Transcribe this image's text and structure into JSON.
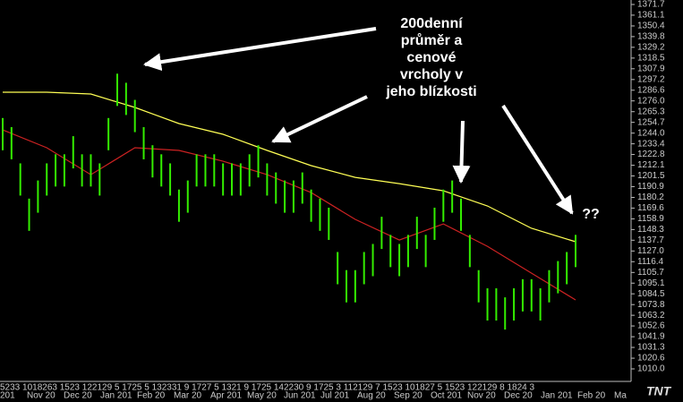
{
  "chart_data": {
    "type": "ohlc",
    "annotation_lines": [
      "200denní",
      "průměr a",
      "cenové",
      "vrcholy v",
      "jeho blízkosti"
    ],
    "annotation_question": "??",
    "logo": "TNT",
    "x_day_labels": "5233 1018263 1523 122129 5 1725 5 132331 9 1727 5 1321 9 1725 142230 9 1725 3 112129 7 1523 101827 5 1523 122129 8 1824 3",
    "x_month_labels": [
      "201",
      "Nov 20",
      "Dec 20",
      "Jan 201",
      "Feb 20",
      "Mar 20",
      "Apr 201",
      "May 20",
      "Jun 201",
      "Jul 201",
      "Aug 20",
      "Sep 20",
      "Oct 201",
      "Nov 20",
      "Dec 20",
      "Jan 201",
      "Feb 20",
      "Ma"
    ],
    "ylim": [
      1010.0,
      1371.7
    ],
    "yticks": [
      1371.7,
      1361.1,
      1350.4,
      1339.8,
      1329.2,
      1318.5,
      1307.9,
      1297.2,
      1286.6,
      {
        "value": 1276.0,
        "label": "1276.0"
      },
      1265.3,
      1254.7,
      {
        "value": 1244.0,
        "label": "1244.0"
      },
      1233.4,
      1222.8,
      1212.1,
      1201.5,
      1190.9,
      1180.2,
      1169.6,
      1158.9,
      1148.3,
      1137.7,
      {
        "value": 1127.0,
        "label": "1127.0"
      },
      1116.4,
      1105.7,
      1095.1,
      1084.5,
      1073.8,
      1063.2,
      1052.6,
      1041.9,
      1031.3,
      1020.6,
      {
        "value": 1010.0,
        "label": "1010.0"
      }
    ],
    "price": {
      "color": "#33ee00",
      "high": [
        1259,
        1250,
        1214,
        1179,
        1197,
        1214,
        1223,
        1223,
        1241,
        1223,
        1223,
        1214,
        1259,
        1303,
        1294,
        1277,
        1250,
        1232,
        1223,
        1214,
        1188,
        1197,
        1223,
        1223,
        1223,
        1214,
        1214,
        1214,
        1223,
        1232,
        1214,
        1205,
        1197,
        1197,
        1205,
        1188,
        1179,
        1170,
        1126,
        1108,
        1108,
        1126,
        1134,
        1161,
        1143,
        1134,
        1143,
        1161,
        1143,
        1170,
        1188,
        1197,
        1179,
        1143,
        1108,
        1090,
        1090,
        1081,
        1090,
        1099,
        1099,
        1090,
        1108,
        1117,
        1126,
        1143
      ],
      "low": [
        1227,
        1218,
        1182,
        1147,
        1165,
        1182,
        1191,
        1191,
        1209,
        1191,
        1191,
        1182,
        1227,
        1271,
        1262,
        1245,
        1218,
        1200,
        1191,
        1182,
        1156,
        1165,
        1191,
        1191,
        1191,
        1182,
        1182,
        1182,
        1191,
        1200,
        1182,
        1174,
        1165,
        1165,
        1174,
        1156,
        1147,
        1138,
        1094,
        1076,
        1076,
        1094,
        1102,
        1129,
        1111,
        1102,
        1111,
        1129,
        1111,
        1138,
        1156,
        1165,
        1147,
        1111,
        1076,
        1058,
        1058,
        1049,
        1058,
        1067,
        1067,
        1058,
        1076,
        1085,
        1094,
        1111
      ]
    },
    "series": [
      {
        "color": "#ffff55",
        "values": [
          1284.6,
          1284.6,
          1282.8,
          1269.5,
          1253.5,
          1242.8,
          1226.8,
          1211.7,
          1200.1,
          1193.9,
          1186.8,
          1171.7,
          1149.5,
          1136.2
        ]
      },
      {
        "color": "#cc2222",
        "values": [
          1247.2,
          1229.5,
          1202.8,
          1229.5,
          1226.8,
          1216.1,
          1202.8,
          1185.0,
          1158.4,
          1137.9,
          1153.9,
          1131.7,
          1105.0,
          1078.4
        ]
      }
    ]
  }
}
